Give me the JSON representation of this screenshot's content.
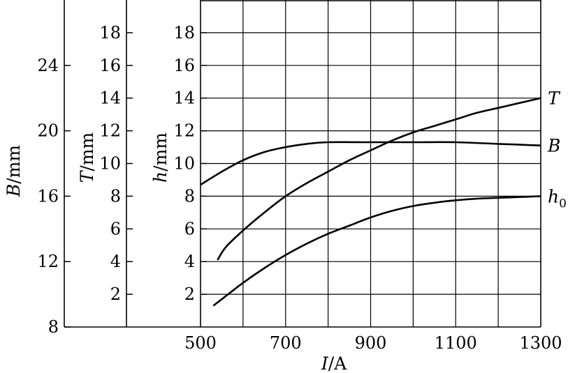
{
  "chart_data": {
    "type": "line",
    "grid": true,
    "x_axis": {
      "label_italic": "I",
      "label_unit": "/A",
      "range": [
        500,
        1300
      ],
      "tick_labels": [
        "500",
        "700",
        "900",
        "1100",
        "1300"
      ],
      "grid_values": [
        600,
        700,
        800,
        900,
        1000,
        1100,
        1200,
        1300
      ]
    },
    "y_axes": {
      "B": {
        "label_italic": "B",
        "label_unit": "/mm",
        "range": [
          8,
          28
        ],
        "ticks": [
          8,
          12,
          16,
          20,
          24
        ]
      },
      "T": {
        "label_italic": "T",
        "label_unit": "/mm",
        "range": [
          0,
          20
        ],
        "ticks": [
          2,
          4,
          6,
          8,
          10,
          12,
          14,
          16,
          18
        ]
      },
      "h": {
        "label_italic": "h",
        "label_unit": "/mm",
        "range": [
          0,
          20
        ],
        "ticks": [
          2,
          4,
          6,
          8,
          10,
          12,
          14,
          16,
          18
        ]
      }
    },
    "series": [
      {
        "name": "T",
        "axis": "T",
        "x": [
          540,
          560,
          600,
          650,
          700,
          750,
          800,
          850,
          900,
          950,
          1000,
          1050,
          1100,
          1150,
          1200,
          1250,
          1300
        ],
        "y": [
          4.1,
          4.9,
          5.9,
          7.0,
          8.0,
          8.8,
          9.5,
          10.2,
          10.8,
          11.4,
          11.9,
          12.3,
          12.7,
          13.1,
          13.4,
          13.7,
          14.0
        ]
      },
      {
        "name": "B",
        "axis": "B",
        "x": [
          500,
          550,
          600,
          650,
          700,
          750,
          800,
          900,
          1000,
          1100,
          1200,
          1300
        ],
        "y": [
          16.7,
          17.5,
          18.2,
          18.7,
          19.0,
          19.2,
          19.3,
          19.3,
          19.3,
          19.3,
          19.2,
          19.1
        ]
      },
      {
        "name": "h0",
        "label_base": "h",
        "label_sub": "0",
        "axis": "h",
        "x": [
          530,
          560,
          600,
          650,
          700,
          750,
          800,
          850,
          900,
          950,
          1000,
          1050,
          1100,
          1150,
          1200,
          1250,
          1300
        ],
        "y": [
          1.3,
          1.9,
          2.7,
          3.6,
          4.4,
          5.1,
          5.7,
          6.2,
          6.7,
          7.1,
          7.4,
          7.6,
          7.75,
          7.85,
          7.9,
          7.95,
          8.0
        ]
      }
    ]
  }
}
